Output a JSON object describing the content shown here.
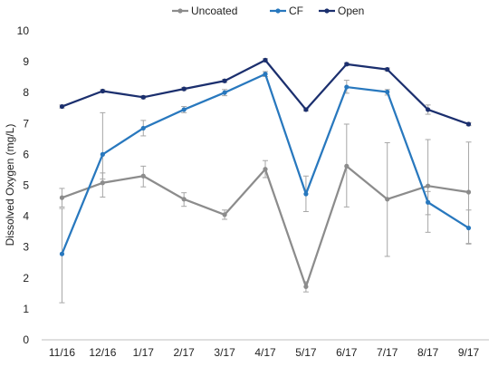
{
  "chart_data": {
    "type": "line",
    "title": "",
    "xlabel": "",
    "ylabel": "Dissolved Oxygen (mg/L)",
    "ylim": [
      0,
      10
    ],
    "yticks": [
      0,
      1,
      2,
      3,
      4,
      5,
      6,
      7,
      8,
      9,
      10
    ],
    "grid": false,
    "legend_position": "top-center",
    "categories": [
      "11/16",
      "12/16",
      "1/17",
      "2/17",
      "3/17",
      "4/17",
      "5/17",
      "6/17",
      "7/17",
      "8/17",
      "9/17"
    ],
    "series": [
      {
        "name": "Uncoated",
        "color": "#8c8c8c",
        "values": [
          4.6,
          5.08,
          5.3,
          4.55,
          4.05,
          5.52,
          1.72,
          5.62,
          4.55,
          4.98,
          4.78
        ],
        "error": [
          [
            4.3,
            4.9
          ],
          [
            4.62,
            5.4
          ],
          [
            4.95,
            5.62
          ],
          [
            4.32,
            4.76
          ],
          [
            3.9,
            4.2
          ],
          [
            5.25,
            5.8
          ],
          [
            1.55,
            1.88
          ],
          [
            4.3,
            6.98
          ],
          [
            2.7,
            6.38
          ],
          [
            3.48,
            6.48
          ],
          [
            3.1,
            6.4
          ]
        ]
      },
      {
        "name": "CF",
        "color": "#2878be",
        "values": [
          2.78,
          6.0,
          6.85,
          7.45,
          8.0,
          8.6,
          4.72,
          8.18,
          8.02,
          4.45,
          3.62
        ],
        "error": [
          [
            1.2,
            4.25
          ],
          [
            5.2,
            7.35
          ],
          [
            6.6,
            7.1
          ],
          [
            7.35,
            7.55
          ],
          [
            7.9,
            8.1
          ],
          [
            8.52,
            8.68
          ],
          [
            4.15,
            5.3
          ],
          [
            7.98,
            8.4
          ],
          [
            7.92,
            8.1
          ],
          [
            4.05,
            4.8
          ],
          [
            3.12,
            4.2
          ]
        ]
      },
      {
        "name": "Open",
        "color": "#1b2f6e",
        "values": [
          7.55,
          8.05,
          7.85,
          8.12,
          8.38,
          9.05,
          7.45,
          8.92,
          8.75,
          7.45,
          6.98
        ],
        "error": [
          [
            7.5,
            7.6
          ],
          [
            8.0,
            8.1
          ],
          [
            7.8,
            7.9
          ],
          [
            8.07,
            8.17
          ],
          [
            8.33,
            8.43
          ],
          [
            9.0,
            9.1
          ],
          [
            7.4,
            7.5
          ],
          [
            8.87,
            8.97
          ],
          [
            8.7,
            8.8
          ],
          [
            7.3,
            7.6
          ],
          [
            6.93,
            7.03
          ]
        ]
      }
    ]
  }
}
